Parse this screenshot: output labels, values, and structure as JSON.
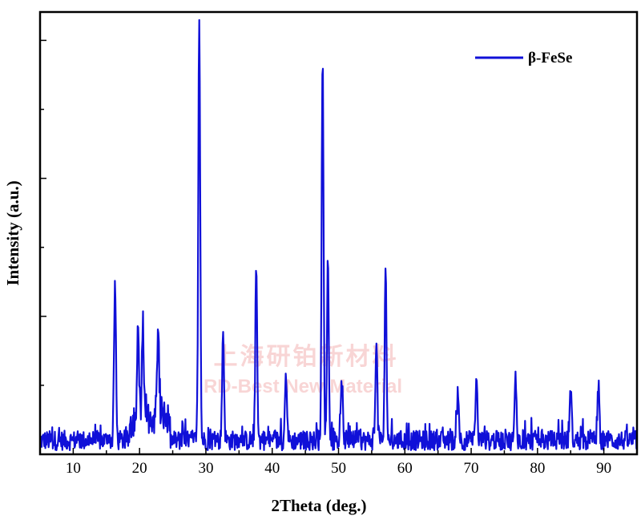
{
  "chart_data": {
    "type": "line",
    "title": "",
    "xlabel": "2Theta (deg.)",
    "ylabel": "Intensity (a.u.)",
    "xlim": [
      5,
      95
    ],
    "ylim": [
      0,
      1.1
    ],
    "x_ticks": [
      10,
      20,
      30,
      40,
      50,
      60,
      70,
      80,
      90
    ],
    "y_ticks_shown": false,
    "legend": {
      "position": "top-right"
    },
    "watermark": {
      "cn": "上海研铂新材料",
      "en": "RD-Best New Material"
    },
    "series": [
      {
        "name": "β-FeSe",
        "color": "#1010d8",
        "peaks": [
          {
            "x": 16.3,
            "y": 0.4
          },
          {
            "x": 19.8,
            "y": 0.21
          },
          {
            "x": 20.5,
            "y": 0.22
          },
          {
            "x": 22.8,
            "y": 0.23
          },
          {
            "x": 29.0,
            "y": 1.1
          },
          {
            "x": 32.6,
            "y": 0.28
          },
          {
            "x": 37.6,
            "y": 0.44
          },
          {
            "x": 42.1,
            "y": 0.17
          },
          {
            "x": 47.6,
            "y": 0.97
          },
          {
            "x": 48.4,
            "y": 0.46
          },
          {
            "x": 50.5,
            "y": 0.15
          },
          {
            "x": 55.7,
            "y": 0.26
          },
          {
            "x": 57.1,
            "y": 0.42
          },
          {
            "x": 68.0,
            "y": 0.13
          },
          {
            "x": 70.8,
            "y": 0.15
          },
          {
            "x": 76.7,
            "y": 0.16
          },
          {
            "x": 85.0,
            "y": 0.13
          },
          {
            "x": 89.2,
            "y": 0.13
          }
        ]
      }
    ]
  }
}
